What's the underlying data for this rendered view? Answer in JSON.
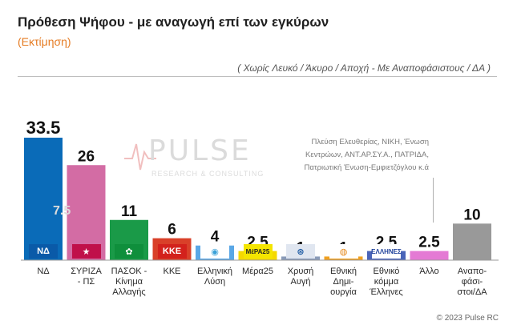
{
  "header": {
    "title": "Πρόθεση Ψήφου - με αναγωγή επί των εγκύρων",
    "subtitle": "(Εκτίμηση)",
    "filter_note": "( Χωρίς Λευκό / Άκυρο / Αποχή  -  Με Αναποφάσιστους / ΔΑ )"
  },
  "watermark": {
    "brand": "PULSE",
    "tagline": "RESEARCH & CONSULTING"
  },
  "annotations": {
    "other_note": "Πλεύση Ελευθερίας, ΝΙΚΗ, Ένωση Κεντρώων, ΑΝΤ.ΑΡ.ΣΥ.Α., ΠΑΤΡΙΔΑ, Πατριωτική Ένωση-Εμφιετζόγλου κ.ά",
    "nd_inner_value": "7.5"
  },
  "footer": {
    "copyright": "© 2023 Pulse RC"
  },
  "logos": [
    {
      "text": "ΝΔ",
      "color": "#ffffff",
      "bg": "#0a5aa8"
    },
    {
      "text": "★",
      "color": "#ffffff",
      "bg": "#c0104a"
    },
    {
      "text": "✿",
      "color": "#ffffff",
      "bg": "#0f8f3c"
    },
    {
      "text": "ΚΚΕ",
      "color": "#ffffff",
      "bg": "#d3211c"
    },
    {
      "text": "◉",
      "color": "#3aa1d8",
      "bg": "#ffffff"
    },
    {
      "text": "ΜέΡΑ25",
      "color": "#222222",
      "bg": "#f4e500"
    },
    {
      "text": "⊛",
      "color": "#1c5aa3",
      "bg": "#e0e6f0"
    },
    {
      "text": "◍",
      "color": "#e68a1c",
      "bg": "#ffffff"
    },
    {
      "text": "ΕΛΛΗΝΕΣ",
      "color": "#1c3f9a",
      "bg": "#ffffff"
    },
    {
      "text": "",
      "color": "#000000",
      "bg": "#ffffff"
    },
    {
      "text": "",
      "color": "#000000",
      "bg": "#ffffff"
    }
  ],
  "chart_data": {
    "type": "bar",
    "categories": [
      "ΝΔ",
      "ΣΥΡΙΖΑ - ΠΣ",
      "ΠΑΣΟΚ - Κίνημα Αλλαγής",
      "ΚΚΕ",
      "Ελληνική Λύση",
      "Μέρα25",
      "Χρυσή Αυγή",
      "Εθνική Δημι- ουργία",
      "Εθνικό κόμμα Έλληνες",
      "Άλλο",
      "Αναπο- φάσι- στοι/ΔΑ"
    ],
    "category_lines": [
      [
        "ΝΔ"
      ],
      [
        "ΣΥΡΙΖΑ",
        "- ΠΣ"
      ],
      [
        "ΠΑΣΟΚ -",
        "Κίνημα",
        "Αλλαγής"
      ],
      [
        "ΚΚΕ"
      ],
      [
        "Ελληνική",
        "Λύση"
      ],
      [
        "Μέρα25"
      ],
      [
        "Χρυσή",
        "Αυγή"
      ],
      [
        "Εθνική",
        "Δημι-",
        "ουργία"
      ],
      [
        "Εθνικό",
        "κόμμα",
        "Έλληνες"
      ],
      [
        "Άλλο"
      ],
      [
        "Αναπο-",
        "φάσι-",
        "στοι/ΔΑ"
      ]
    ],
    "values": [
      33.5,
      26,
      11,
      6,
      4,
      2.5,
      1,
      1,
      2.5,
      2.5,
      10
    ],
    "value_labels": [
      "33.5",
      "26",
      "11",
      "6",
      "4",
      "2.5",
      "1",
      "1",
      "2.5",
      "2.5",
      "10"
    ],
    "colors": [
      "#0a6bb8",
      "#d36ca4",
      "#1a9a48",
      "#d94029",
      "#5aa7e6",
      "#f5d800",
      "#8a9bb8",
      "#f0a020",
      "#4a64b8",
      "#e47ad4",
      "#999999"
    ],
    "ylim": [
      0,
      33.5
    ],
    "grid": false,
    "legend": "none"
  }
}
